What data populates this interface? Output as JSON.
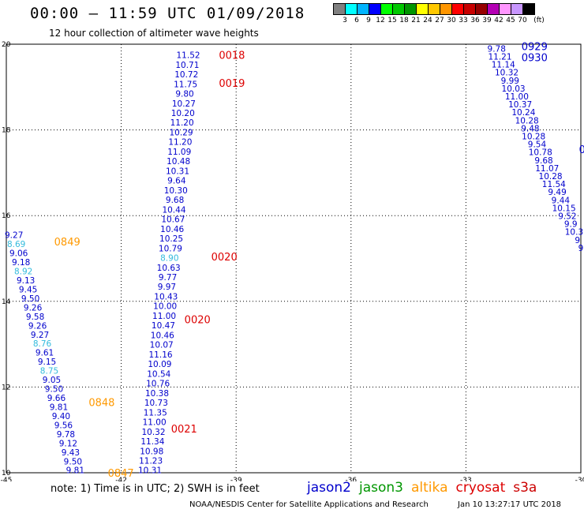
{
  "header": {
    "title": "00:00 – 11:59 UTC 01/09/2018",
    "subtitle": "12 hour collection of altimeter wave heights"
  },
  "colorbar": {
    "colors": [
      "#808080",
      "#00ffff",
      "#00b4ff",
      "#0000ff",
      "#00ff00",
      "#00c800",
      "#009600",
      "#ffff00",
      "#ffc800",
      "#ff9600",
      "#ff0000",
      "#c80000",
      "#960000",
      "#b400b4",
      "#ff96ff",
      "#c896ff",
      "#000000"
    ],
    "labels": [
      "3",
      "6",
      "9",
      "12",
      "15",
      "18",
      "21",
      "24",
      "27",
      "30",
      "33",
      "36",
      "39",
      "42",
      "45",
      "70",
      "(ft)"
    ]
  },
  "chart_data": {
    "type": "scatter",
    "title": "12 hour collection of altimeter wave heights",
    "xlabel": "",
    "ylabel": "",
    "xlim": [
      -45,
      -30
    ],
    "ylim": [
      10,
      20
    ],
    "xticks": [
      "-45",
      "-42",
      "-39",
      "-36",
      "-33",
      "-30"
    ],
    "yticks": [
      "20",
      "18",
      "16",
      "14",
      "12",
      "10"
    ],
    "grid": true,
    "series_colors": {
      "jason2": "#0000cc",
      "jason3": "#009600",
      "altika": "#ff9900",
      "cryosat": "#dd0000",
      "s3a": "#cc0000",
      "light": "#33bbdd"
    },
    "tracks": [
      {
        "name": "A",
        "start": [
          -44.8,
          15.55
        ],
        "end": [
          -43.2,
          10.06
        ],
        "values": [
          "9.27",
          "8.69",
          "9.06",
          "9.18",
          "8.92",
          "9.13",
          "9.45",
          "9.50",
          "9.26",
          "9.58",
          "9.26",
          "9.27",
          "8.76",
          "9.61",
          "9.15",
          "8.75",
          "9.05",
          "9.50",
          "9.66",
          "9.81",
          "9.40",
          "9.56",
          "9.78",
          "9.12",
          "9.43",
          "9.50",
          "9.81"
        ],
        "light": [
          1,
          4,
          12,
          15
        ]
      },
      {
        "name": "B",
        "start": [
          -40.25,
          19.75
        ],
        "end": [
          -41.25,
          10.06
        ],
        "values": [
          "11.52",
          "10.71",
          "10.72",
          "11.75",
          "9.80",
          "10.27",
          "10.20",
          "11.20",
          "10.29",
          "11.20",
          "11.09",
          "10.48",
          "10.31",
          "9.64",
          "10.30",
          "9.68",
          "10.44",
          "10.67",
          "10.46",
          "10.25",
          "10.79",
          "8.90",
          "10.63",
          "9.77",
          "9.97",
          "10.43",
          "10.00",
          "11.00",
          "10.47",
          "10.46",
          "10.07",
          "11.16",
          "10.09",
          "10.54",
          "10.76",
          "10.38",
          "10.73",
          "11.35",
          "11.00",
          "10.32",
          "11.34",
          "10.98",
          "11.23",
          "10.31"
        ],
        "light": [
          21
        ]
      },
      {
        "name": "C",
        "start": [
          -32.2,
          19.9
        ],
        "end": [
          -30.0,
          15.25
        ],
        "values": [
          "9.78",
          "11.21",
          "11.14",
          "10.32",
          "9.99",
          "10.03",
          "11.00",
          "10.37",
          "10.24",
          "10.28",
          "9.48",
          "10.28",
          "9.54",
          "10.78",
          "9.68",
          "11.07",
          "10.28",
          "11.54",
          "9.49",
          "9.44",
          "10.15",
          "9.52",
          "9.9",
          "10.3",
          "9",
          "9"
        ],
        "light": []
      }
    ],
    "time_labels": [
      {
        "text": "0018",
        "x": -39.45,
        "y": 19.75,
        "sat": "cryosat"
      },
      {
        "text": "0019",
        "x": -39.45,
        "y": 19.1,
        "sat": "cryosat"
      },
      {
        "text": "0020",
        "x": -39.65,
        "y": 15.05,
        "sat": "cryosat"
      },
      {
        "text": "0020",
        "x": -40.35,
        "y": 13.58,
        "sat": "cryosat"
      },
      {
        "text": "0021",
        "x": -40.7,
        "y": 11.03,
        "sat": "cryosat"
      },
      {
        "text": "0849",
        "x": -43.75,
        "y": 15.4,
        "sat": "altika"
      },
      {
        "text": "0848",
        "x": -42.85,
        "y": 11.65,
        "sat": "altika"
      },
      {
        "text": "0847",
        "x": -42.35,
        "y": 10.0,
        "sat": "altika"
      },
      {
        "text": "0929",
        "x": -31.55,
        "y": 19.95,
        "sat": "jason2"
      },
      {
        "text": "0930",
        "x": -31.55,
        "y": 19.7,
        "sat": "jason2"
      },
      {
        "text": "0",
        "x": -30.05,
        "y": 17.55,
        "sat": "jason2"
      }
    ]
  },
  "footer": {
    "note": "note:  1) Time is in UTC;  2) SWH is in feet",
    "legend": [
      {
        "name": "jason2",
        "color": "#0000cc"
      },
      {
        "name": "jason3",
        "color": "#009600"
      },
      {
        "name": "altika",
        "color": "#ff9900"
      },
      {
        "name": "cryosat",
        "color": "#dd0000"
      },
      {
        "name": "s3a",
        "color": "#cc0000"
      }
    ],
    "credit": "NOAA/NESDIS Center for Satellite Applications and Research",
    "timestamp": "Jan 10 13:27:17 UTC 2018"
  }
}
